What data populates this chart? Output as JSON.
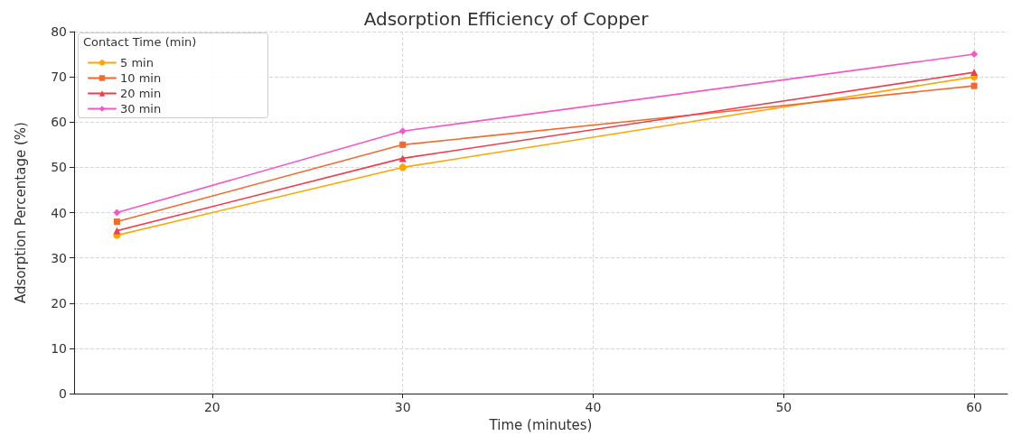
{
  "chart_data": {
    "type": "line",
    "title": "Adsorption Efficiency of Copper",
    "xlabel": "Time (minutes)",
    "ylabel": "Adsorption Percentage (%)",
    "legend_title": "Contact Time (min)",
    "legend": "top left",
    "grid": true,
    "line_style": "solid",
    "x": [
      15,
      30,
      60
    ],
    "xlim": [
      12.75,
      61.75
    ],
    "xticks": [
      20,
      30,
      40,
      50,
      60
    ],
    "ylim": [
      0,
      80
    ],
    "yticks": [
      0,
      10,
      20,
      30,
      40,
      50,
      60,
      70,
      80
    ],
    "series": [
      {
        "name": "5 min",
        "color": "#ffa500",
        "marker": "circle",
        "values": [
          35,
          50,
          70
        ]
      },
      {
        "name": "10 min",
        "color": "#f26a2e",
        "marker": "square",
        "values": [
          38,
          55,
          68
        ]
      },
      {
        "name": "20 min",
        "color": "#ee3e4e",
        "marker": "triangle",
        "values": [
          36,
          52,
          71
        ]
      },
      {
        "name": "30 min",
        "color": "#f557c3",
        "marker": "diamond",
        "values": [
          40,
          58,
          75
        ]
      }
    ]
  }
}
